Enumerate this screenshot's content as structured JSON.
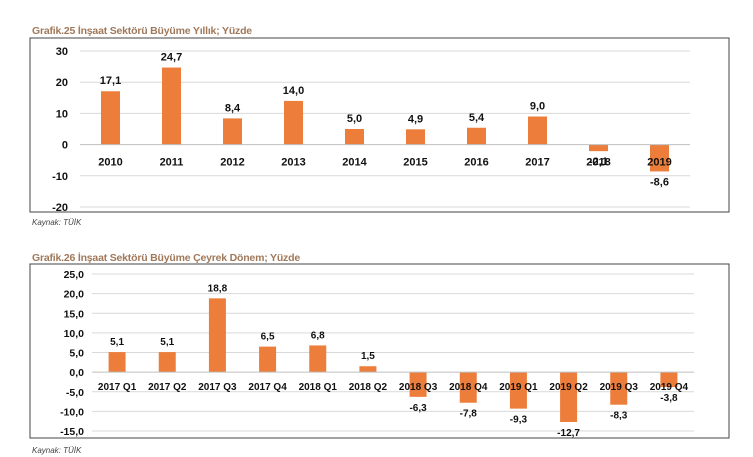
{
  "chart_data": [
    {
      "type": "bar",
      "title": "Grafik.25 İnşaat Sektörü Büyüme Yıllık; Yüzde",
      "source": "Kaynak: TÜİK",
      "categories": [
        "2010",
        "2011",
        "2012",
        "2013",
        "2014",
        "2015",
        "2016",
        "2017",
        "2018",
        "2019"
      ],
      "values": [
        17.1,
        24.7,
        8.4,
        14.0,
        5.0,
        4.9,
        5.4,
        9.0,
        -2.1,
        -8.6
      ],
      "value_labels": [
        "17,1",
        "24,7",
        "8,4",
        "14,0",
        "5,0",
        "4,9",
        "5,4",
        "9,0",
        "-2,1",
        "-8,6"
      ],
      "yticks": [
        30,
        20,
        10,
        0,
        -10,
        -20
      ],
      "ytick_labels": [
        "30",
        "20",
        "10",
        "0",
        "-10",
        "-20"
      ],
      "ylim": [
        -20,
        30
      ],
      "grid": true,
      "bar_color": "#ed7d3a"
    },
    {
      "type": "bar",
      "title": "Grafik.26 İnşaat Sektörü Büyüme Çeyrek Dönem; Yüzde",
      "source": "Kaynak: TÜİK",
      "categories": [
        "2017 Q1",
        "2017 Q2",
        "2017 Q3",
        "2017 Q4",
        "2018 Q1",
        "2018 Q2",
        "2018 Q3",
        "2018 Q4",
        "2019 Q1",
        "2019 Q2",
        "2019 Q3",
        "2019 Q4"
      ],
      "values": [
        5.1,
        5.1,
        18.8,
        6.5,
        6.8,
        1.5,
        -6.3,
        -7.8,
        -9.3,
        -12.7,
        -8.3,
        -3.8
      ],
      "value_labels": [
        "5,1",
        "5,1",
        "18,8",
        "6,5",
        "6,8",
        "1,5",
        "-6,3",
        "-7,8",
        "-9,3",
        "-12,7",
        "-8,3",
        "-3,8"
      ],
      "yticks": [
        25,
        20,
        15,
        10,
        5,
        0,
        -5,
        -10,
        -15
      ],
      "ytick_labels": [
        "25,0",
        "20,0",
        "15,0",
        "10,0",
        "5,0",
        "0,0",
        "-5,0",
        "-10,0",
        "-15,0"
      ],
      "ylim": [
        -15,
        25
      ],
      "grid": true,
      "bar_color": "#ed7d3a"
    }
  ]
}
